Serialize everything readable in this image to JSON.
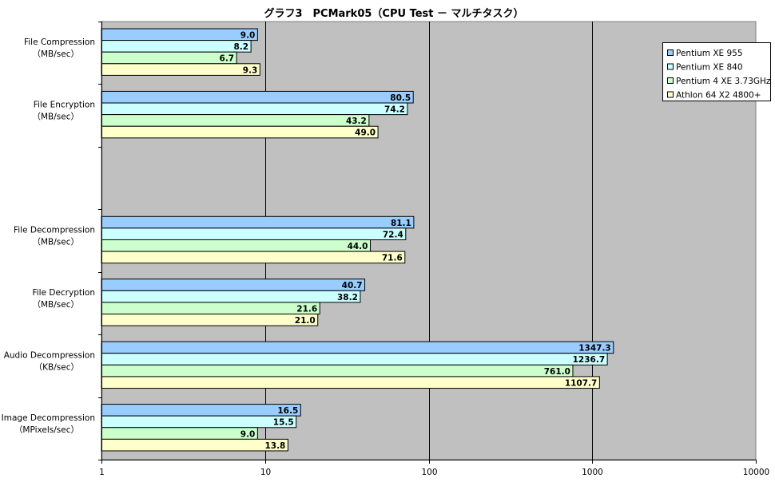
{
  "chart_data": {
    "type": "bar",
    "orientation": "horizontal",
    "title": "グラフ3　PCMark05（CPU Test － マルチタスク）",
    "scale": "log",
    "xlim": [
      1,
      10000
    ],
    "ticks": [
      "1",
      "10",
      "100",
      "1000",
      "10000"
    ],
    "tick_values": [
      1,
      10,
      100,
      1000,
      10000
    ],
    "grid": true,
    "legend_position": "top-right",
    "categories": [
      {
        "line1": "File Compression",
        "line2": "（MB/sec）"
      },
      {
        "line1": "File Encryption",
        "line2": "（MB/sec）"
      },
      {
        "line1": "",
        "line2": ""
      },
      {
        "line1": "File Decompression",
        "line2": "（MB/sec）"
      },
      {
        "line1": "File Decryption",
        "line2": "（MB/sec）"
      },
      {
        "line1": "Audio Decompression",
        "line2": "（KB/sec）"
      },
      {
        "line1": "Image Decompression",
        "line2": "（MPixels/sec）"
      }
    ],
    "series": [
      {
        "name": "Pentium XE 955",
        "color": "#99ccff",
        "values": [
          9.0,
          80.5,
          null,
          81.1,
          40.7,
          1347.3,
          16.5
        ],
        "labels": [
          "9.0",
          "80.5",
          "",
          "81.1",
          "40.7",
          "1347.3",
          "16.5"
        ]
      },
      {
        "name": "Pentium XE 840",
        "color": "#ccffff",
        "values": [
          8.2,
          74.2,
          null,
          72.4,
          38.2,
          1236.7,
          15.5
        ],
        "labels": [
          "8.2",
          "74.2",
          "",
          "72.4",
          "38.2",
          "1236.7",
          "15.5"
        ]
      },
      {
        "name": "Pentium 4 XE 3.73GHz",
        "color": "#ccffcc",
        "values": [
          6.7,
          43.2,
          null,
          44.0,
          21.6,
          761.0,
          9.0
        ],
        "labels": [
          "6.7",
          "43.2",
          "",
          "44.0",
          "21.6",
          "761.0",
          "9.0"
        ]
      },
      {
        "name": "Athlon 64 X2 4800+",
        "color": "#ffffcc",
        "values": [
          9.3,
          49.0,
          null,
          71.6,
          21.0,
          1107.7,
          13.8
        ],
        "labels": [
          "9.3",
          "49.0",
          "",
          "71.6",
          "21.0",
          "1107.7",
          "13.8"
        ]
      }
    ],
    "colors": {
      "plot_background": "#c0c0c0",
      "gridline": "#000000",
      "bar_border": "#000000"
    }
  }
}
